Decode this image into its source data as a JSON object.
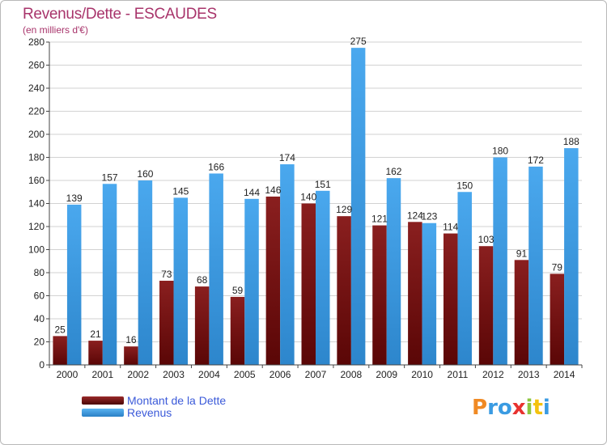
{
  "header": {
    "title": "Revenus/Dette - ESCAUDES",
    "subtitle": "(en milliers d'€)"
  },
  "colors": {
    "dette": "#7a1010",
    "revenus": "#3a9be2",
    "title": "#a8346b",
    "legend_text": "#3b5ad9"
  },
  "chart_data": {
    "type": "bar",
    "title": "Revenus/Dette - ESCAUDES",
    "subtitle": "(en milliers d'€)",
    "categories": [
      "2000",
      "2001",
      "2002",
      "2003",
      "2004",
      "2005",
      "2006",
      "2007",
      "2008",
      "2009",
      "2010",
      "2011",
      "2012",
      "2013",
      "2014"
    ],
    "series": [
      {
        "name": "Montant de la Dette",
        "values": [
          25,
          21,
          16,
          73,
          68,
          59,
          146,
          140,
          129,
          121,
          124,
          114,
          103,
          91,
          79
        ]
      },
      {
        "name": "Revenus",
        "values": [
          139,
          157,
          160,
          145,
          166,
          144,
          174,
          151,
          275,
          162,
          123,
          150,
          180,
          172,
          188
        ]
      }
    ],
    "ylim": [
      0,
      280
    ],
    "yticks": [
      0,
      20,
      40,
      60,
      80,
      100,
      120,
      140,
      160,
      180,
      200,
      220,
      240,
      260,
      280
    ],
    "grid": true,
    "legend": "bottom-left"
  },
  "logo": {
    "text": "Proxiti",
    "letters": [
      {
        "ch": "P",
        "color": "#f08a24"
      },
      {
        "ch": "r",
        "color": "#3a9be2"
      },
      {
        "ch": "o",
        "color": "#3a9be2"
      },
      {
        "ch": "x",
        "color": "#e8322f"
      },
      {
        "ch": "i",
        "color": "#8dc63f"
      },
      {
        "ch": "t",
        "color": "#f4c20d"
      },
      {
        "ch": "i",
        "color": "#3a9be2"
      }
    ]
  }
}
